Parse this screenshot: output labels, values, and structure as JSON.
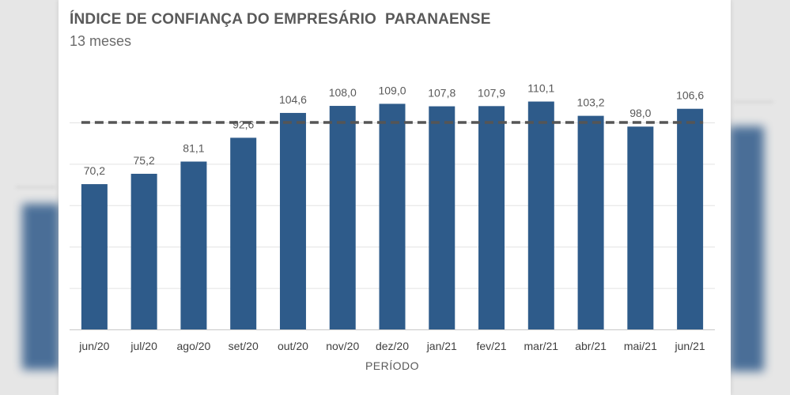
{
  "chart_data": {
    "type": "bar",
    "title": "ÍNDICE DE CONFIANÇA DO EMPRESÁRIO  PARANAENSE",
    "subtitle": "13 meses",
    "xlabel": "PERÍODO",
    "ylabel": "",
    "categories": [
      "jun/20",
      "jul/20",
      "ago/20",
      "set/20",
      "out/20",
      "nov/20",
      "dez/20",
      "jan/21",
      "fev/21",
      "mar/21",
      "abr/21",
      "mai/21",
      "jun/21"
    ],
    "values": [
      70.2,
      75.2,
      81.1,
      92.6,
      104.6,
      108.0,
      109.0,
      107.8,
      107.9,
      110.1,
      103.2,
      98.0,
      106.6
    ],
    "value_labels": [
      "70,2",
      "75,2",
      "81,1",
      "92,6",
      "104,6",
      "108,0",
      "109,0",
      "107,8",
      "107,9",
      "110,1",
      "103,2",
      "98,0",
      "106,6"
    ],
    "reference_line": {
      "value": 100,
      "style": "dashed"
    },
    "ylim": [
      0,
      130
    ],
    "grid": true,
    "legend": "none",
    "colors": {
      "bar": "#2e5b8a",
      "reference_line": "#555555"
    }
  }
}
